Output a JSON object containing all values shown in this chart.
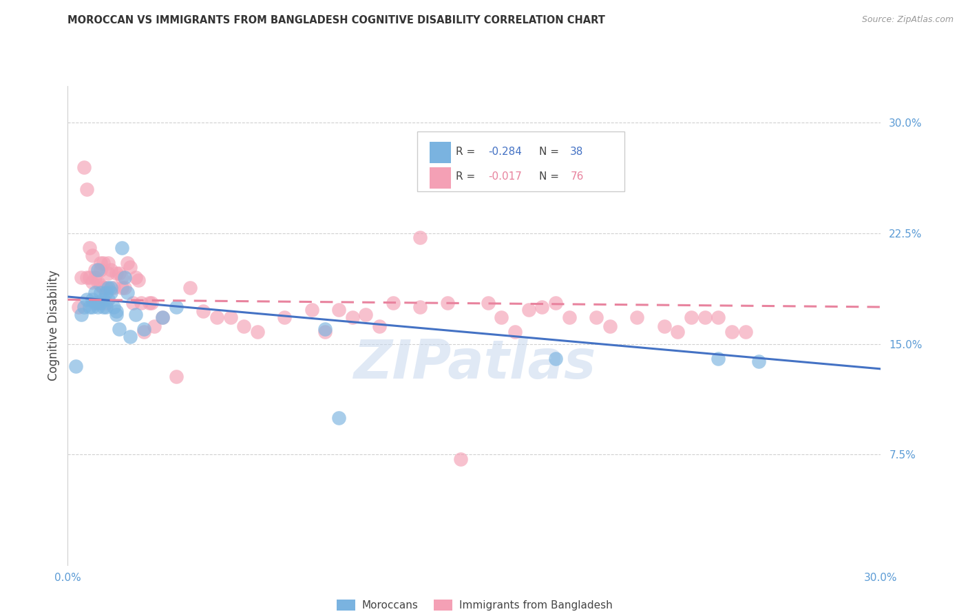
{
  "title": "MOROCCAN VS IMMIGRANTS FROM BANGLADESH COGNITIVE DISABILITY CORRELATION CHART",
  "source": "Source: ZipAtlas.com",
  "ylabel": "Cognitive Disability",
  "ytick_labels": [
    "30.0%",
    "22.5%",
    "15.0%",
    "7.5%"
  ],
  "ytick_values": [
    0.3,
    0.225,
    0.15,
    0.075
  ],
  "xlim": [
    0.0,
    0.3
  ],
  "ylim": [
    0.0,
    0.325
  ],
  "moroccan_color": "#7ab3e0",
  "bangladesh_color": "#f4a0b5",
  "moroccan_line_color": "#4472c4",
  "bangladesh_line_color": "#e8839e",
  "tick_color": "#5B9BD5",
  "watermark": "ZIPatlas",
  "moroccan_scatter_x": [
    0.003,
    0.005,
    0.006,
    0.007,
    0.008,
    0.009,
    0.009,
    0.01,
    0.01,
    0.011,
    0.011,
    0.012,
    0.012,
    0.013,
    0.013,
    0.014,
    0.014,
    0.015,
    0.015,
    0.016,
    0.016,
    0.017,
    0.018,
    0.018,
    0.019,
    0.02,
    0.021,
    0.022,
    0.023,
    0.025,
    0.028,
    0.035,
    0.04,
    0.095,
    0.1,
    0.18,
    0.24,
    0.255
  ],
  "moroccan_scatter_y": [
    0.135,
    0.17,
    0.175,
    0.18,
    0.175,
    0.18,
    0.175,
    0.185,
    0.178,
    0.175,
    0.2,
    0.185,
    0.178,
    0.18,
    0.175,
    0.185,
    0.175,
    0.188,
    0.18,
    0.188,
    0.185,
    0.175,
    0.172,
    0.17,
    0.16,
    0.215,
    0.195,
    0.185,
    0.155,
    0.17,
    0.16,
    0.168,
    0.175,
    0.16,
    0.1,
    0.14,
    0.14,
    0.138
  ],
  "bangladesh_scatter_x": [
    0.004,
    0.005,
    0.006,
    0.007,
    0.007,
    0.008,
    0.008,
    0.009,
    0.009,
    0.01,
    0.01,
    0.011,
    0.011,
    0.012,
    0.012,
    0.012,
    0.013,
    0.013,
    0.014,
    0.014,
    0.015,
    0.015,
    0.016,
    0.017,
    0.018,
    0.019,
    0.02,
    0.02,
    0.021,
    0.022,
    0.023,
    0.024,
    0.025,
    0.026,
    0.027,
    0.028,
    0.03,
    0.031,
    0.032,
    0.035,
    0.04,
    0.045,
    0.05,
    0.055,
    0.06,
    0.065,
    0.07,
    0.08,
    0.09,
    0.095,
    0.1,
    0.105,
    0.11,
    0.12,
    0.13,
    0.14,
    0.155,
    0.16,
    0.17,
    0.18,
    0.195,
    0.2,
    0.21,
    0.22,
    0.23,
    0.24,
    0.25,
    0.13,
    0.145,
    0.165,
    0.175,
    0.185,
    0.115,
    0.225,
    0.235,
    0.245
  ],
  "bangladesh_scatter_y": [
    0.175,
    0.195,
    0.27,
    0.255,
    0.195,
    0.215,
    0.195,
    0.21,
    0.192,
    0.2,
    0.195,
    0.192,
    0.178,
    0.19,
    0.2,
    0.205,
    0.205,
    0.188,
    0.188,
    0.178,
    0.205,
    0.198,
    0.2,
    0.188,
    0.198,
    0.198,
    0.188,
    0.195,
    0.188,
    0.205,
    0.202,
    0.178,
    0.195,
    0.193,
    0.178,
    0.158,
    0.178,
    0.178,
    0.162,
    0.168,
    0.128,
    0.188,
    0.172,
    0.168,
    0.168,
    0.162,
    0.158,
    0.168,
    0.173,
    0.158,
    0.173,
    0.168,
    0.17,
    0.178,
    0.222,
    0.178,
    0.178,
    0.168,
    0.173,
    0.178,
    0.168,
    0.162,
    0.168,
    0.162,
    0.168,
    0.168,
    0.158,
    0.175,
    0.072,
    0.158,
    0.175,
    0.168,
    0.162,
    0.158,
    0.168,
    0.158
  ],
  "moroccan_line_x0": 0.0,
  "moroccan_line_y0": 0.182,
  "moroccan_line_x1": 0.3,
  "moroccan_line_y1": 0.133,
  "bangladesh_line_x0": 0.0,
  "bangladesh_line_y0": 0.18,
  "bangladesh_line_x1": 0.3,
  "bangladesh_line_y1": 0.175
}
